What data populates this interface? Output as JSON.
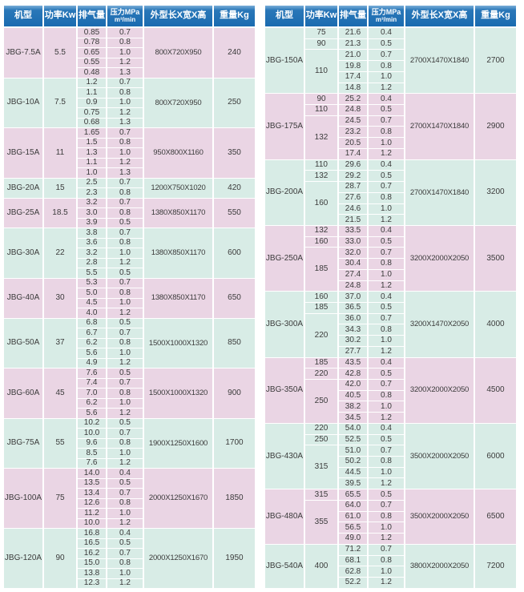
{
  "colors": {
    "header_blue": "#1a6bb0",
    "band_pink": "#ead5e4",
    "band_teal": "#d8ece6",
    "header_text": "#ffffff",
    "body_text": "#3b3b3b"
  },
  "header": {
    "model": "机型",
    "power": "功率Kw",
    "displacement": "排气量",
    "pressure_line1": "压力MPa",
    "pressure_line2": "m³/min",
    "dimensions": "外型长X宽X高",
    "weight": "重量Kg"
  },
  "tables": [
    {
      "name": "left",
      "first_band": "pink",
      "groups": [
        {
          "model": "JBG-7.5A",
          "power": [
            {
              "value": "5.5",
              "rows": 5
            }
          ],
          "rows": [
            [
              "0.85",
              "0.7"
            ],
            [
              "0.78",
              "0.8"
            ],
            [
              "0.65",
              "1.0"
            ],
            [
              "0.55",
              "1.2"
            ],
            [
              "0.48",
              "1.3"
            ]
          ],
          "dimensions": "800X720X950",
          "weight": "240"
        },
        {
          "model": "JBG-10A",
          "power": [
            {
              "value": "7.5",
              "rows": 5
            }
          ],
          "rows": [
            [
              "1.2",
              "0.7"
            ],
            [
              "1.1",
              "0.8"
            ],
            [
              "0.9",
              "1.0"
            ],
            [
              "0.75",
              "1.2"
            ],
            [
              "0.68",
              "1.3"
            ]
          ],
          "dimensions": "800X720X950",
          "weight": "250"
        },
        {
          "model": "JBG-15A",
          "power": [
            {
              "value": "11",
              "rows": 5
            }
          ],
          "rows": [
            [
              "1.65",
              "0.7"
            ],
            [
              "1.5",
              "0.8"
            ],
            [
              "1.3",
              "1.0"
            ],
            [
              "1.1",
              "1.2"
            ],
            [
              "1.0",
              "1.3"
            ]
          ],
          "dimensions": "950X800X1160",
          "weight": "350"
        },
        {
          "model": "JBG-20A",
          "power": [
            {
              "value": "15",
              "rows": 2
            }
          ],
          "rows": [
            [
              "2.5",
              "0.7"
            ],
            [
              "2.3",
              "0.8"
            ]
          ],
          "dimensions": "1200X750X1020",
          "weight": "420"
        },
        {
          "model": "JBG-25A",
          "power": [
            {
              "value": "18.5",
              "rows": 3
            }
          ],
          "rows": [
            [
              "3.2",
              "0.7"
            ],
            [
              "3.0",
              "0.8"
            ],
            [
              "3.9",
              "0.5"
            ]
          ],
          "dimensions": "1380X850X1170",
          "weight": "550"
        },
        {
          "model": "JBG-30A",
          "power": [
            {
              "value": "22",
              "rows": 5
            }
          ],
          "rows": [
            [
              "3.8",
              "0.7"
            ],
            [
              "3.6",
              "0.8"
            ],
            [
              "3.2",
              "1.0"
            ],
            [
              "2.8",
              "1.2"
            ],
            [
              "5.5",
              "0.5"
            ]
          ],
          "dimensions": "1380X850X1170",
          "weight": "600"
        },
        {
          "model": "JBG-40A",
          "power": [
            {
              "value": "30",
              "rows": 4
            }
          ],
          "rows": [
            [
              "5.3",
              "0.7"
            ],
            [
              "5.0",
              "0.8"
            ],
            [
              "4.5",
              "1.0"
            ],
            [
              "4.0",
              "1.2"
            ]
          ],
          "dimensions": "1380X850X1170",
          "weight": "650"
        },
        {
          "model": "JBG-50A",
          "power": [
            {
              "value": "37",
              "rows": 5
            }
          ],
          "rows": [
            [
              "6.8",
              "0.5"
            ],
            [
              "6.7",
              "0.7"
            ],
            [
              "6.2",
              "0.8"
            ],
            [
              "5.6",
              "1.0"
            ],
            [
              "4.9",
              "1.2"
            ]
          ],
          "dimensions": "1500X1000X1320",
          "weight": "850"
        },
        {
          "model": "JBG-60A",
          "power": [
            {
              "value": "45",
              "rows": 5
            }
          ],
          "rows": [
            [
              "7.6",
              "0.5"
            ],
            [
              "7.4",
              "0.7"
            ],
            [
              "7.0",
              "0.8"
            ],
            [
              "6.2",
              "1.0"
            ],
            [
              "5.6",
              "1.2"
            ]
          ],
          "dimensions": "1500X1000X1320",
          "weight": "900"
        },
        {
          "model": "JBG-75A",
          "power": [
            {
              "value": "55",
              "rows": 5
            }
          ],
          "rows": [
            [
              "10.2",
              "0.5"
            ],
            [
              "10.0",
              "0.7"
            ],
            [
              "9.6",
              "0.8"
            ],
            [
              "8.5",
              "1.0"
            ],
            [
              "7.6",
              "1.2"
            ]
          ],
          "dimensions": "1900X1250X1600",
          "weight": "1700"
        },
        {
          "model": "JBG-100A",
          "power": [
            {
              "value": "75",
              "rows": 6
            }
          ],
          "rows": [
            [
              "14.0",
              "0.4"
            ],
            [
              "13.5",
              "0.5"
            ],
            [
              "13.4",
              "0.7"
            ],
            [
              "12.6",
              "0.8"
            ],
            [
              "11.2",
              "1.0"
            ],
            [
              "10.0",
              "1.2"
            ]
          ],
          "dimensions": "2000X1250X1670",
          "weight": "1850"
        },
        {
          "model": "JBG-120A",
          "power": [
            {
              "value": "90",
              "rows": 6
            }
          ],
          "rows": [
            [
              "16.8",
              "0.4"
            ],
            [
              "16.5",
              "0.5"
            ],
            [
              "16.2",
              "0.7"
            ],
            [
              "15.0",
              "0.8"
            ],
            [
              "13.8",
              "1.0"
            ],
            [
              "12.3",
              "1.2"
            ]
          ],
          "dimensions": "2000X1250X1670",
          "weight": "1950"
        }
      ]
    },
    {
      "name": "right",
      "first_band": "teal",
      "groups": [
        {
          "model": "JBG-150A",
          "power": [
            {
              "value": "75",
              "rows": 1
            },
            {
              "value": "90",
              "rows": 1
            },
            {
              "value": "110",
              "rows": 4
            }
          ],
          "rows": [
            [
              "21.6",
              "0.4"
            ],
            [
              "21.3",
              "0.5"
            ],
            [
              "21.0",
              "0.7"
            ],
            [
              "19.8",
              "0.8"
            ],
            [
              "17.4",
              "1.0"
            ],
            [
              "14.8",
              "1.2"
            ]
          ],
          "dimensions": "2700X1470X1840",
          "weight": "2700"
        },
        {
          "model": "JBG-175A",
          "power": [
            {
              "value": "90",
              "rows": 1
            },
            {
              "value": "110",
              "rows": 1
            },
            {
              "value": "132",
              "rows": 4
            }
          ],
          "rows": [
            [
              "25.2",
              "0.4"
            ],
            [
              "24.8",
              "0.5"
            ],
            [
              "24.5",
              "0.7"
            ],
            [
              "23.2",
              "0.8"
            ],
            [
              "20.5",
              "1.0"
            ],
            [
              "17.4",
              "1.2"
            ]
          ],
          "dimensions": "2700X1470X1840",
          "weight": "2900"
        },
        {
          "model": "JBG-200A",
          "power": [
            {
              "value": "110",
              "rows": 1
            },
            {
              "value": "132",
              "rows": 1
            },
            {
              "value": "160",
              "rows": 4
            }
          ],
          "rows": [
            [
              "29.6",
              "0.4"
            ],
            [
              "29.2",
              "0.5"
            ],
            [
              "28.7",
              "0.7"
            ],
            [
              "27.6",
              "0.8"
            ],
            [
              "24.6",
              "1.0"
            ],
            [
              "21.5",
              "1.2"
            ]
          ],
          "dimensions": "2700X1470X1840",
          "weight": "3200"
        },
        {
          "model": "JBG-250A",
          "power": [
            {
              "value": "132",
              "rows": 1
            },
            {
              "value": "160",
              "rows": 1
            },
            {
              "value": "185",
              "rows": 4
            }
          ],
          "rows": [
            [
              "33.5",
              "0.4"
            ],
            [
              "33.0",
              "0.5"
            ],
            [
              "32.0",
              "0.7"
            ],
            [
              "30.4",
              "0.8"
            ],
            [
              "27.4",
              "1.0"
            ],
            [
              "24.8",
              "1.2"
            ]
          ],
          "dimensions": "3200X2000X2050",
          "weight": "3500"
        },
        {
          "model": "JBG-300A",
          "power": [
            {
              "value": "160",
              "rows": 1
            },
            {
              "value": "185",
              "rows": 1
            },
            {
              "value": "220",
              "rows": 4
            }
          ],
          "rows": [
            [
              "37.0",
              "0.4"
            ],
            [
              "36.5",
              "0.5"
            ],
            [
              "36.0",
              "0.7"
            ],
            [
              "34.3",
              "0.8"
            ],
            [
              "30.2",
              "1.0"
            ],
            [
              "27.7",
              "1.2"
            ]
          ],
          "dimensions": "3200X1470X2050",
          "weight": "4000"
        },
        {
          "model": "JBG-350A",
          "power": [
            {
              "value": "185",
              "rows": 1
            },
            {
              "value": "220",
              "rows": 1
            },
            {
              "value": "250",
              "rows": 4
            }
          ],
          "rows": [
            [
              "43.5",
              "0.4"
            ],
            [
              "42.8",
              "0.5"
            ],
            [
              "42.0",
              "0.7"
            ],
            [
              "40.5",
              "0.8"
            ],
            [
              "38.2",
              "1.0"
            ],
            [
              "34.5",
              "1.2"
            ]
          ],
          "dimensions": "3200X2000X2050",
          "weight": "4500"
        },
        {
          "model": "JBG-430A",
          "power": [
            {
              "value": "220",
              "rows": 1
            },
            {
              "value": "250",
              "rows": 1
            },
            {
              "value": "315",
              "rows": 4
            }
          ],
          "rows": [
            [
              "54.0",
              "0.4"
            ],
            [
              "52.5",
              "0.5"
            ],
            [
              "51.0",
              "0.7"
            ],
            [
              "50.2",
              "0.8"
            ],
            [
              "44.5",
              "1.0"
            ],
            [
              "39.5",
              "1.2"
            ]
          ],
          "dimensions": "3500X2000X2050",
          "weight": "6000"
        },
        {
          "model": "JBG-480A",
          "power": [
            {
              "value": "315",
              "rows": 1
            },
            {
              "value": "355",
              "rows": 4
            }
          ],
          "rows": [
            [
              "65.5",
              "0.5"
            ],
            [
              "64.0",
              "0.7"
            ],
            [
              "61.0",
              "0.8"
            ],
            [
              "56.5",
              "1.0"
            ],
            [
              "49.0",
              "1.2"
            ]
          ],
          "dimensions": "3500X2000X2050",
          "weight": "6500"
        },
        {
          "model": "JBG-540A",
          "power": [
            {
              "value": "400",
              "rows": 4
            }
          ],
          "rows": [
            [
              "71.2",
              "0.7"
            ],
            [
              "68.1",
              "0.8"
            ],
            [
              "62.8",
              "1.0"
            ],
            [
              "52.2",
              "1.2"
            ]
          ],
          "dimensions": "3800X2000X2050",
          "weight": "7200"
        }
      ]
    }
  ]
}
